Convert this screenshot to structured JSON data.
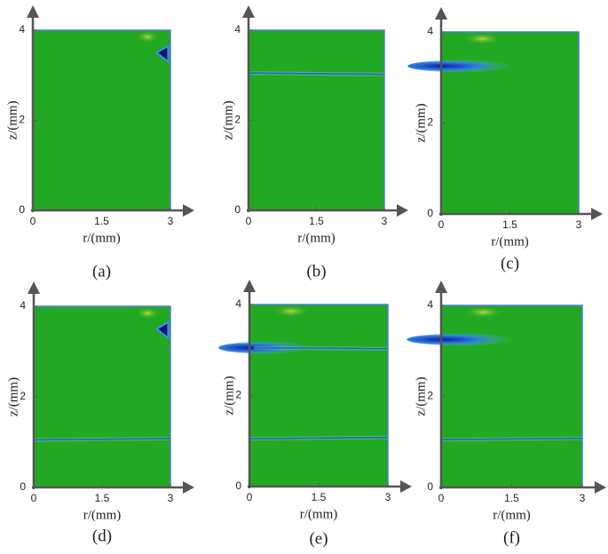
{
  "chart_data": [
    {
      "type": "field",
      "caption": "(a)",
      "x_label": "r/(mm)",
      "y_label": "z/(mm)",
      "xlim": [
        0,
        3
      ],
      "ylim": [
        0,
        4
      ],
      "xticks": [
        0,
        1.5,
        3
      ],
      "yticks": [
        0,
        2,
        4
      ]
    },
    {
      "type": "field",
      "caption": "(b)",
      "x_label": "r/(mm)",
      "y_label": "z/(mm)",
      "xlim": [
        0,
        3
      ],
      "ylim": [
        0,
        4
      ],
      "xticks": [
        0,
        1.5,
        3
      ],
      "yticks": [
        0,
        2,
        4
      ]
    },
    {
      "type": "field",
      "caption": "(c)",
      "x_label": "r/(mm)",
      "y_label": "z/(mm)",
      "xlim": [
        0,
        3
      ],
      "ylim": [
        0,
        4
      ],
      "xticks": [
        0,
        1.5,
        3
      ],
      "yticks": [
        0,
        2,
        4
      ]
    },
    {
      "type": "field",
      "caption": "(d)",
      "x_label": "r/(mm)",
      "y_label": "z/(mm)",
      "xlim": [
        0,
        3
      ],
      "ylim": [
        0,
        4
      ],
      "xticks": [
        0,
        1.5,
        3
      ],
      "yticks": [
        0,
        2,
        4
      ]
    },
    {
      "type": "field",
      "caption": "(e)",
      "x_label": "r/(mm)",
      "y_label": "z/(mm)",
      "xlim": [
        0,
        3
      ],
      "ylim": [
        0,
        4
      ],
      "xticks": [
        0,
        1.5,
        3
      ],
      "yticks": [
        0,
        2,
        4
      ]
    },
    {
      "type": "field",
      "caption": "(f)",
      "x_label": "r/(mm)",
      "y_label": "z/(mm)",
      "xlim": [
        0,
        3
      ],
      "ylim": [
        0,
        4
      ],
      "xticks": [
        0,
        1.5,
        3
      ],
      "yticks": [
        0,
        2,
        4
      ]
    }
  ]
}
